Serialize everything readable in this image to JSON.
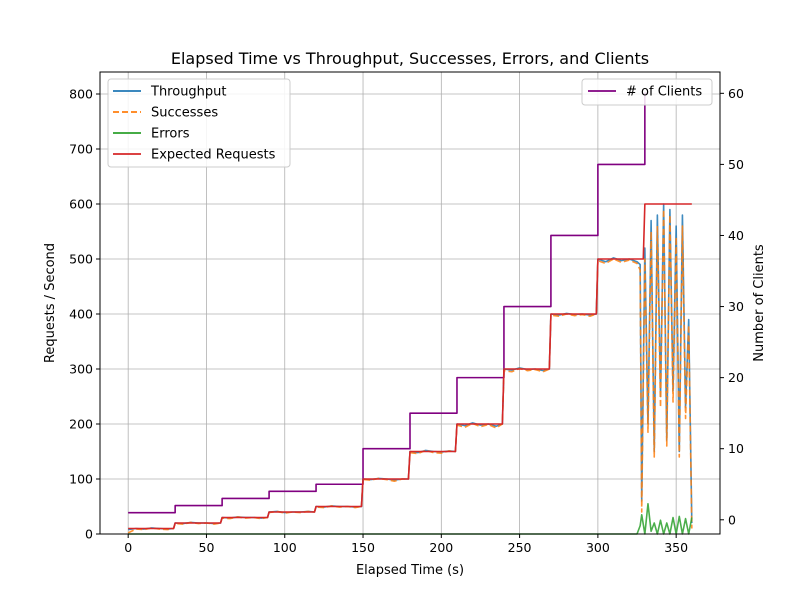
{
  "chart_data": {
    "type": "line",
    "title": "Elapsed Time vs Throughput, Successes, Errors, and Clients",
    "xlabel": "Elapsed Time (s)",
    "ylabel": "Requests / Second",
    "y2label": "Number of Clients",
    "xlim": [
      -18,
      378
    ],
    "ylim": [
      0,
      840
    ],
    "y2lim": [
      -2,
      63
    ],
    "xticks": [
      0,
      50,
      100,
      150,
      200,
      250,
      300,
      350
    ],
    "yticks": [
      0,
      100,
      200,
      300,
      400,
      500,
      600,
      700,
      800
    ],
    "y2ticks": [
      0,
      10,
      20,
      30,
      40,
      50,
      60
    ],
    "grid": true,
    "legend_left": "upper-left",
    "legend_right": "upper-right",
    "series": [
      {
        "name": "Throughput",
        "axis": "left",
        "color": "#1f77b4",
        "dash": "solid",
        "x": [
          0,
          5,
          10,
          15,
          20,
          25,
          29,
          30,
          35,
          40,
          45,
          50,
          55,
          59,
          60,
          65,
          70,
          75,
          80,
          85,
          89,
          90,
          95,
          100,
          105,
          110,
          115,
          119,
          120,
          125,
          130,
          135,
          140,
          145,
          149,
          150,
          155,
          160,
          165,
          170,
          175,
          179,
          180,
          185,
          190,
          195,
          200,
          205,
          209,
          210,
          215,
          220,
          225,
          230,
          235,
          239,
          240,
          245,
          250,
          255,
          260,
          265,
          269,
          270,
          275,
          280,
          285,
          290,
          295,
          299,
          300,
          305,
          310,
          315,
          320,
          325,
          327,
          328,
          330,
          332,
          334,
          336,
          338,
          340,
          342,
          344,
          346,
          348,
          350,
          352,
          354,
          356,
          358,
          360
        ],
        "values": [
          8,
          10,
          9,
          11,
          10,
          9,
          10,
          20,
          19,
          21,
          20,
          20,
          19,
          20,
          30,
          29,
          31,
          30,
          30,
          29,
          30,
          40,
          41,
          39,
          40,
          40,
          41,
          40,
          50,
          49,
          51,
          50,
          50,
          49,
          50,
          100,
          99,
          101,
          100,
          98,
          100,
          100,
          150,
          148,
          152,
          150,
          149,
          151,
          150,
          200,
          197,
          202,
          198,
          200,
          196,
          200,
          300,
          298,
          302,
          299,
          300,
          297,
          300,
          400,
          398,
          401,
          399,
          400,
          398,
          400,
          500,
          495,
          502,
          497,
          500,
          495,
          490,
          60,
          520,
          200,
          570,
          150,
          580,
          250,
          600,
          170,
          590,
          260,
          560,
          150,
          580,
          230,
          390,
          20
        ]
      },
      {
        "name": "Successes",
        "axis": "left",
        "color": "#ff7f0e",
        "dash": "dashed",
        "x": [
          0,
          5,
          10,
          15,
          20,
          25,
          29,
          30,
          35,
          40,
          45,
          50,
          55,
          59,
          60,
          65,
          70,
          75,
          80,
          85,
          89,
          90,
          95,
          100,
          105,
          110,
          115,
          119,
          120,
          125,
          130,
          135,
          140,
          145,
          149,
          150,
          155,
          160,
          165,
          170,
          175,
          179,
          180,
          185,
          190,
          195,
          200,
          205,
          209,
          210,
          215,
          220,
          225,
          230,
          235,
          239,
          240,
          245,
          250,
          255,
          260,
          265,
          269,
          270,
          275,
          280,
          285,
          290,
          295,
          299,
          300,
          305,
          310,
          315,
          320,
          325,
          327,
          328,
          330,
          332,
          334,
          336,
          338,
          340,
          342,
          344,
          346,
          348,
          350,
          352,
          354,
          356,
          358,
          360
        ],
        "values": [
          2,
          9,
          8,
          11,
          9,
          8,
          10,
          19,
          18,
          21,
          19,
          20,
          18,
          20,
          29,
          28,
          31,
          29,
          30,
          28,
          30,
          39,
          41,
          38,
          40,
          39,
          41,
          40,
          49,
          48,
          51,
          49,
          50,
          48,
          50,
          99,
          98,
          101,
          99,
          96,
          100,
          100,
          148,
          146,
          152,
          148,
          147,
          151,
          150,
          198,
          194,
          201,
          195,
          199,
          193,
          200,
          297,
          295,
          301,
          297,
          299,
          295,
          300,
          398,
          396,
          400,
          397,
          399,
          396,
          400,
          497,
          492,
          500,
          494,
          498,
          492,
          480,
          40,
          500,
          185,
          550,
          140,
          560,
          230,
          590,
          160,
          580,
          240,
          540,
          140,
          560,
          210,
          380,
          10
        ]
      },
      {
        "name": "Errors",
        "axis": "left",
        "color": "#2ca02c",
        "dash": "solid",
        "x": [
          0,
          50,
          100,
          150,
          200,
          250,
          300,
          325,
          327,
          328,
          330,
          332,
          334,
          336,
          338,
          340,
          342,
          344,
          346,
          348,
          350,
          352,
          354,
          356,
          358,
          360
        ],
        "values": [
          0,
          0,
          0,
          0,
          0,
          0,
          0,
          0,
          15,
          35,
          0,
          55,
          5,
          20,
          0,
          25,
          0,
          20,
          0,
          30,
          0,
          32,
          0,
          28,
          0,
          30
        ]
      },
      {
        "name": "Expected Requests",
        "axis": "left",
        "color": "#d62728",
        "dash": "solid",
        "x": [
          0,
          29,
          30,
          59,
          60,
          89,
          90,
          119,
          120,
          149,
          150,
          179,
          180,
          209,
          210,
          239,
          240,
          269,
          270,
          299,
          300,
          329,
          330,
          360
        ],
        "values": [
          10,
          10,
          20,
          20,
          30,
          30,
          40,
          40,
          50,
          50,
          100,
          100,
          150,
          150,
          200,
          200,
          300,
          300,
          400,
          400,
          500,
          500,
          600,
          600
        ]
      },
      {
        "name": "# of Clients",
        "axis": "right",
        "color": "#800080",
        "dash": "solid",
        "x": [
          0,
          30,
          30,
          60,
          60,
          90,
          90,
          120,
          120,
          150,
          150,
          180,
          180,
          210,
          210,
          240,
          240,
          270,
          270,
          300,
          300,
          330,
          330,
          331
        ],
        "values": [
          1,
          1,
          2,
          2,
          3,
          3,
          4,
          4,
          5,
          5,
          10,
          10,
          15,
          15,
          20,
          20,
          30,
          30,
          40,
          40,
          50,
          50,
          60,
          60
        ]
      }
    ]
  }
}
